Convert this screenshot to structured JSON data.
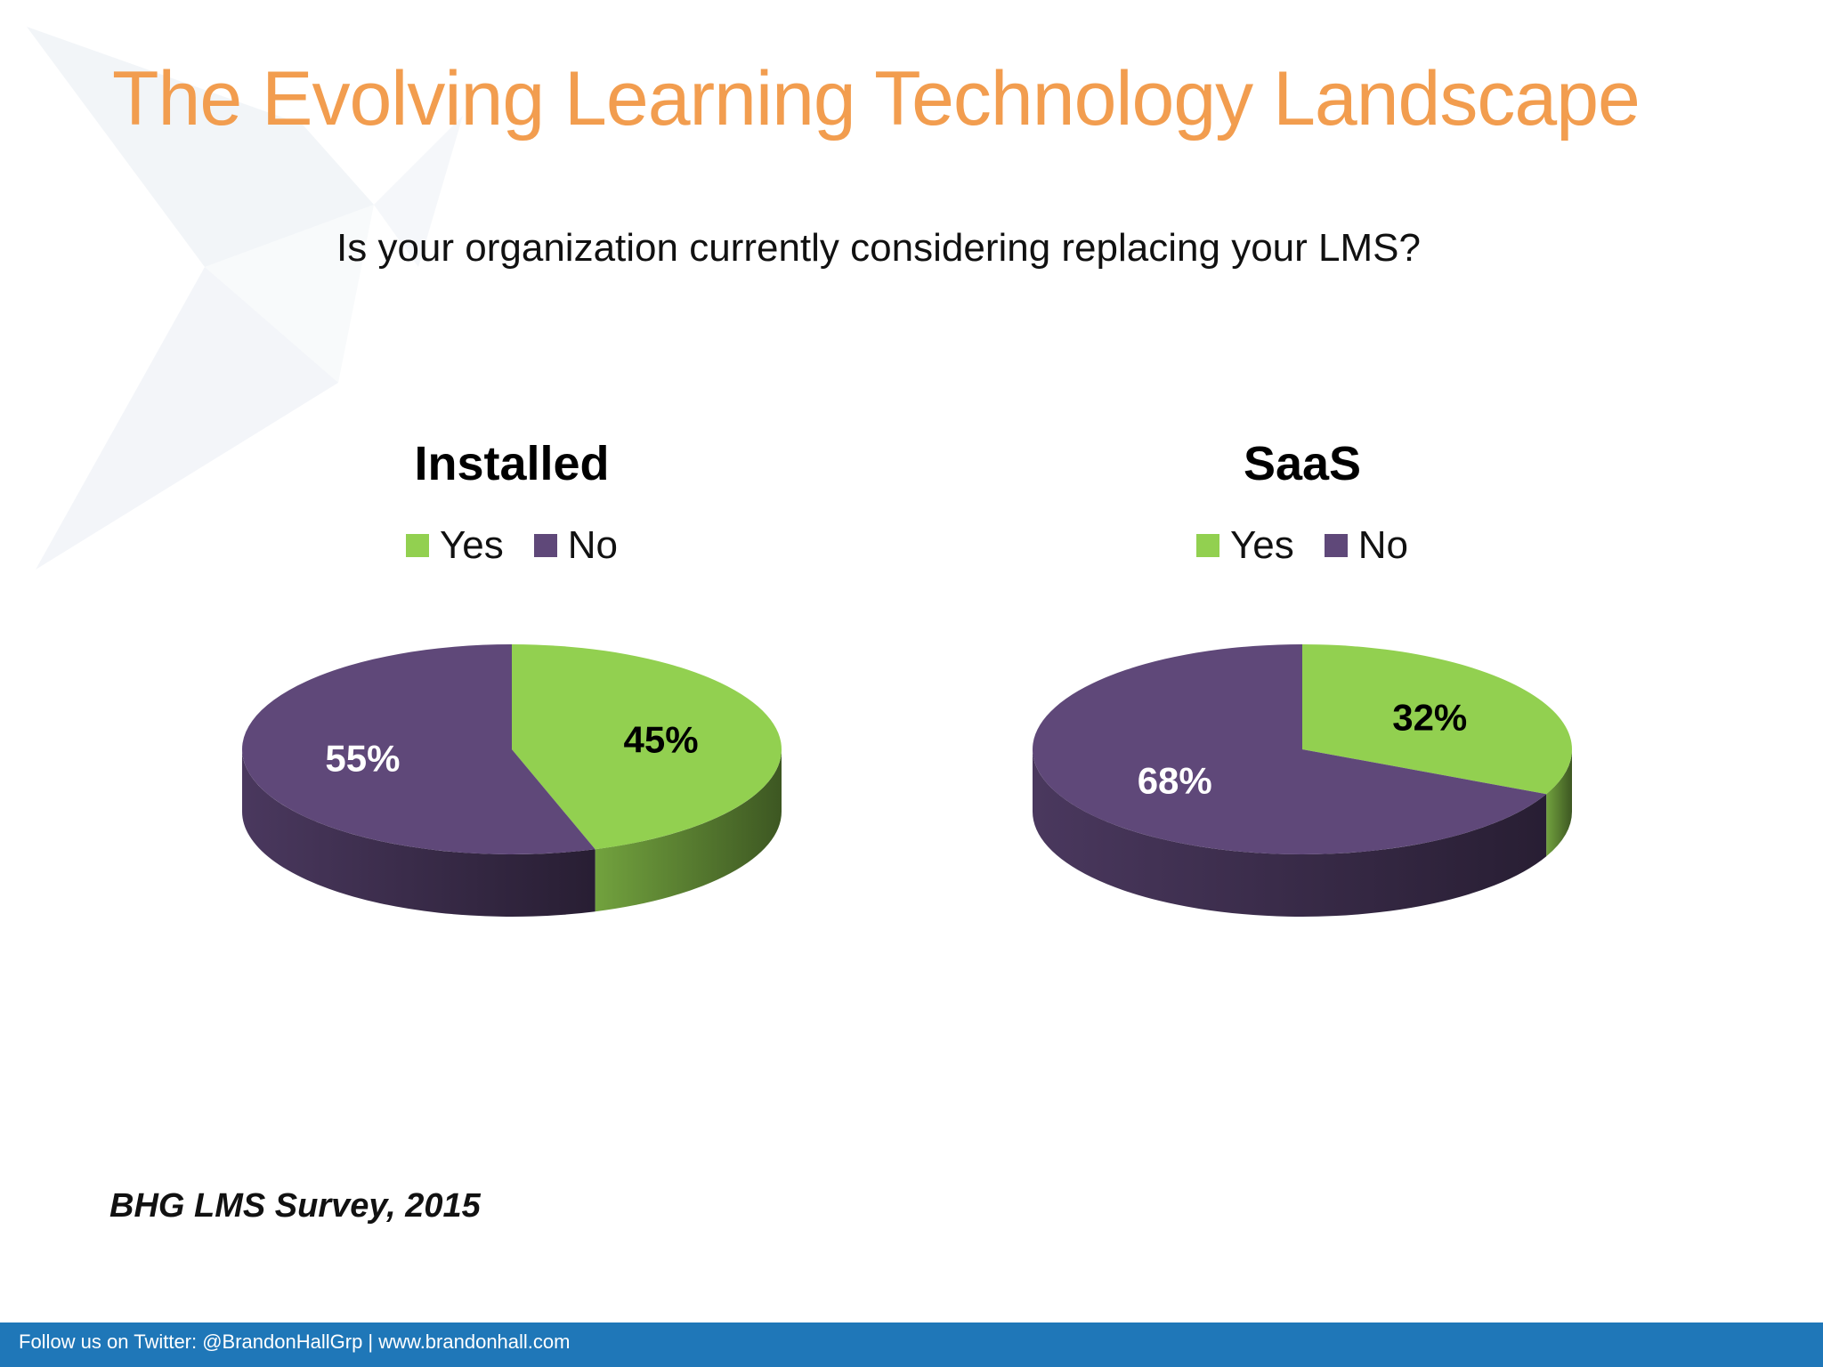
{
  "slide": {
    "title": "The Evolving Learning Technology Landscape",
    "question": "Is your organization currently considering replacing your LMS?",
    "source": "BHG LMS Survey, 2015",
    "footer": "Follow us on Twitter: @BrandonHallGrp | www.brandonhall.com"
  },
  "colors": {
    "title": "#f29d4f",
    "yes": "#92d050",
    "no": "#5f4879",
    "footer": "#1f77b8"
  },
  "chart_data": [
    {
      "type": "pie",
      "title": "Installed",
      "legend": "top",
      "categories": [
        "Yes",
        "No"
      ],
      "values": [
        45,
        55
      ],
      "labels": [
        "45%",
        "55%"
      ]
    },
    {
      "type": "pie",
      "title": "SaaS",
      "legend": "top",
      "categories": [
        "Yes",
        "No"
      ],
      "values": [
        32,
        68
      ],
      "labels": [
        "32%",
        "68%"
      ]
    }
  ]
}
